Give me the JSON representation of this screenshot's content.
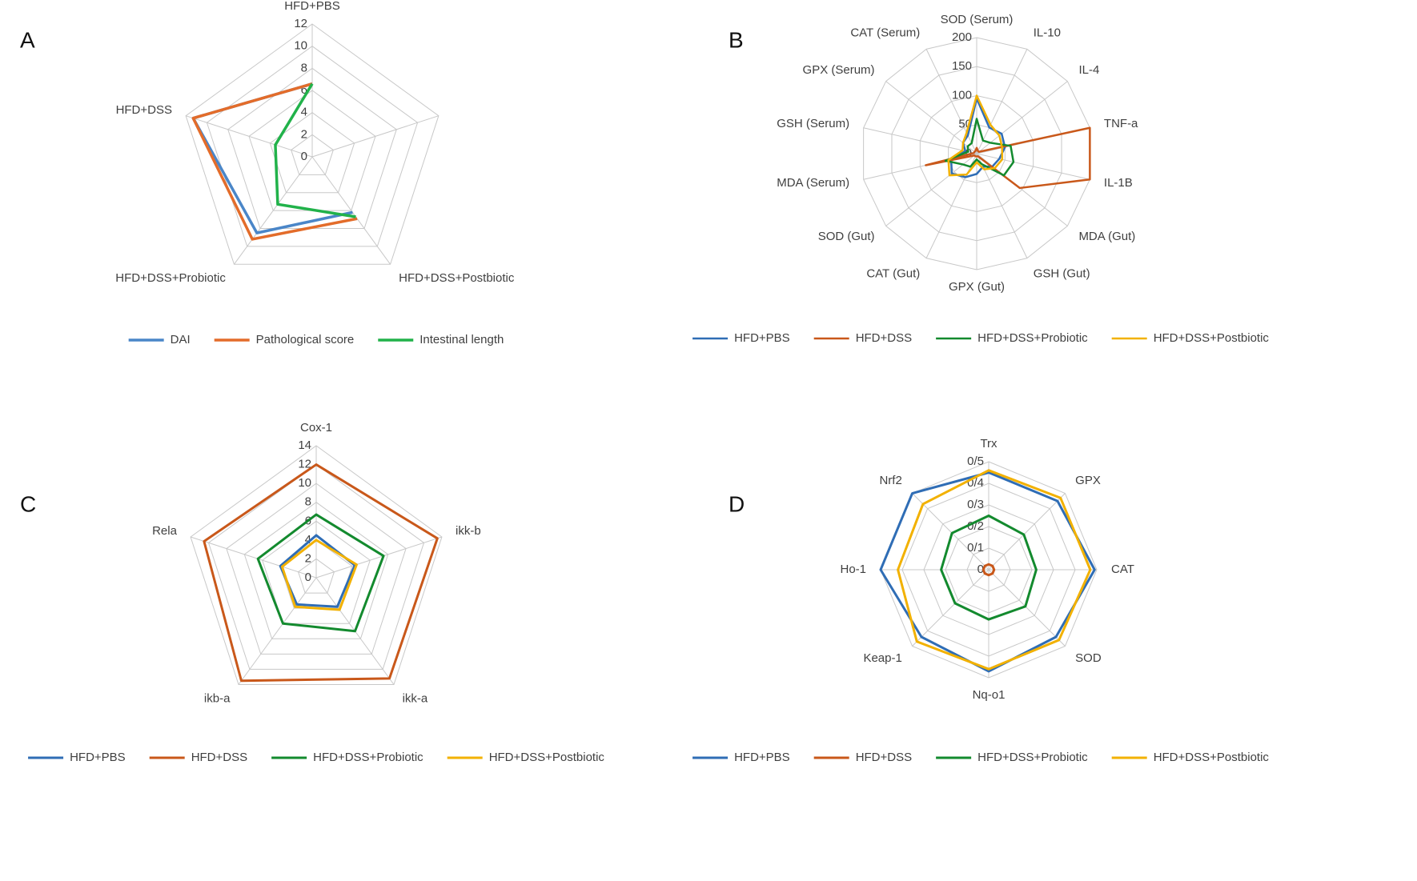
{
  "chart_data": [
    {
      "type": "radar",
      "panel": "A",
      "categories": [
        "HFD+PBS",
        null,
        "HFD+DSS+Postbiotic",
        "HFD+DSS+Probiotic",
        "HFD+DSS"
      ],
      "ylim": [
        0,
        12
      ],
      "yticks": [
        0,
        2,
        4,
        6,
        8,
        10,
        12
      ],
      "grid": true,
      "legend": "bottom",
      "series": [
        {
          "name": "DAI",
          "color": "#4a86c8",
          "values": [
            6.6,
            null,
            6.2,
            8.5,
            11.3
          ]
        },
        {
          "name": "Pathological score",
          "color": "#e36c2a",
          "values": [
            6.6,
            null,
            6.9,
            9.2,
            11.3
          ]
        },
        {
          "name": "Intestinal length",
          "color": "#21b24a",
          "values": [
            6.6,
            null,
            6.7,
            5.3,
            3.5
          ]
        }
      ]
    },
    {
      "type": "radar",
      "panel": "B",
      "categories": [
        "SOD (Serum)",
        "IL-10",
        "IL-4",
        "TNF-a",
        "IL-1B",
        "MDA (Gut)",
        "GSH (Gut)",
        "GPX (Gut)",
        "CAT (Gut)",
        "SOD (Gut)",
        "MDA (Serum)",
        "GSH (Serum)",
        "GPX (Serum)",
        "CAT (Serum)"
      ],
      "ylim": [
        0,
        200
      ],
      "yticks": [
        0,
        50,
        100,
        150,
        200
      ],
      "grid": true,
      "legend": "bottom",
      "series": [
        {
          "name": "HFD+PBS",
          "color": "#2f6db5",
          "values": [
            95,
            50,
            55,
            50,
            40,
            35,
            25,
            35,
            45,
            55,
            45,
            20,
            30,
            35
          ]
        },
        {
          "name": "HFD+DSS",
          "color": "#c9581a",
          "values": [
            10,
            5,
            5,
            200,
            200,
            95,
            5,
            5,
            5,
            5,
            90,
            5,
            5,
            5
          ]
        },
        {
          "name": "HFD+DSS+Probiotic",
          "color": "#138a2e",
          "values": [
            60,
            25,
            30,
            60,
            65,
            60,
            20,
            10,
            25,
            30,
            55,
            15,
            20,
            20
          ]
        },
        {
          "name": "HFD+DSS+Postbiotic",
          "color": "#f2b100",
          "values": [
            100,
            55,
            50,
            45,
            45,
            40,
            30,
            15,
            40,
            60,
            50,
            25,
            30,
            40
          ]
        }
      ]
    },
    {
      "type": "radar",
      "panel": "C",
      "categories": [
        "Cox-1",
        "ikk-b",
        "ikk-a",
        "ikb-a",
        "Rela"
      ],
      "ylim": [
        0,
        14
      ],
      "yticks": [
        0,
        2,
        4,
        6,
        8,
        10,
        12,
        14
      ],
      "grid": true,
      "legend": "bottom",
      "series": [
        {
          "name": "HFD+PBS",
          "color": "#2f6db5",
          "values": [
            4.5,
            4.3,
            3.8,
            3.5,
            4
          ]
        },
        {
          "name": "HFD+DSS",
          "color": "#c9581a",
          "values": [
            12,
            13.5,
            13.2,
            13.5,
            12.5
          ]
        },
        {
          "name": "HFD+DSS+Probiotic",
          "color": "#138a2e",
          "values": [
            6.7,
            7.5,
            7,
            6,
            6.5
          ]
        },
        {
          "name": "HFD+DSS+Postbiotic",
          "color": "#f2b100",
          "values": [
            4,
            4.5,
            4.2,
            3.8,
            3.8
          ]
        }
      ]
    },
    {
      "type": "radar",
      "panel": "D",
      "categories": [
        "Trx",
        "GPX",
        "CAT",
        "SOD",
        "Nq-o1",
        "Keap-1",
        "Ho-1",
        "Nrf2"
      ],
      "ylim": [
        0,
        0.5
      ],
      "yticks": [
        0,
        {
          "value": 0.1,
          "label": "0/1"
        },
        {
          "value": 0.2,
          "label": "0/2"
        },
        {
          "value": 0.3,
          "label": "0/3"
        },
        {
          "value": 0.4,
          "label": "0/4"
        },
        {
          "value": 0.5,
          "label": "0/5"
        }
      ],
      "grid": true,
      "legend": "bottom",
      "series": [
        {
          "name": "HFD+PBS",
          "color": "#2f6db5",
          "values": [
            0.45,
            0.45,
            0.49,
            0.44,
            0.47,
            0.44,
            0.5,
            0.5
          ]
        },
        {
          "name": "HFD+DSS",
          "color": "#c9581a",
          "values": [
            0.025,
            0.025,
            0.025,
            0.025,
            0.025,
            0.025,
            0.025,
            0.025
          ]
        },
        {
          "name": "HFD+DSS+Probiotic",
          "color": "#138a2e",
          "values": [
            0.25,
            0.23,
            0.22,
            0.24,
            0.23,
            0.22,
            0.22,
            0.24
          ]
        },
        {
          "name": "HFD+DSS+Postbiotic",
          "color": "#f2b100",
          "values": [
            0.46,
            0.47,
            0.47,
            0.46,
            0.46,
            0.47,
            0.42,
            0.43
          ]
        }
      ]
    }
  ]
}
